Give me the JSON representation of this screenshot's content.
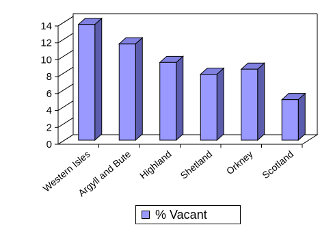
{
  "chart_data": {
    "type": "bar",
    "categories": [
      "Western Isles",
      "Argyll and Bute",
      "Highland",
      "Shetland",
      "Orkney",
      "Scotland"
    ],
    "series": [
      {
        "name": "% Vacant",
        "values": [
          13.7,
          11.4,
          9.2,
          7.8,
          8.4,
          4.8
        ]
      }
    ],
    "title": "",
    "xlabel": "",
    "ylabel": "",
    "ylim": [
      0,
      14
    ],
    "yticks": [
      "0",
      "2",
      "4",
      "6",
      "8",
      "10",
      "12",
      "14"
    ],
    "grid": false,
    "legend_position": "bottom",
    "three_d": true,
    "colors": {
      "bar_front": "#9999FF",
      "bar_side": "#5C5CAD",
      "bar_top": "#8080E0",
      "outline": "#000000"
    }
  },
  "legend": {
    "label": "% Vacant"
  }
}
